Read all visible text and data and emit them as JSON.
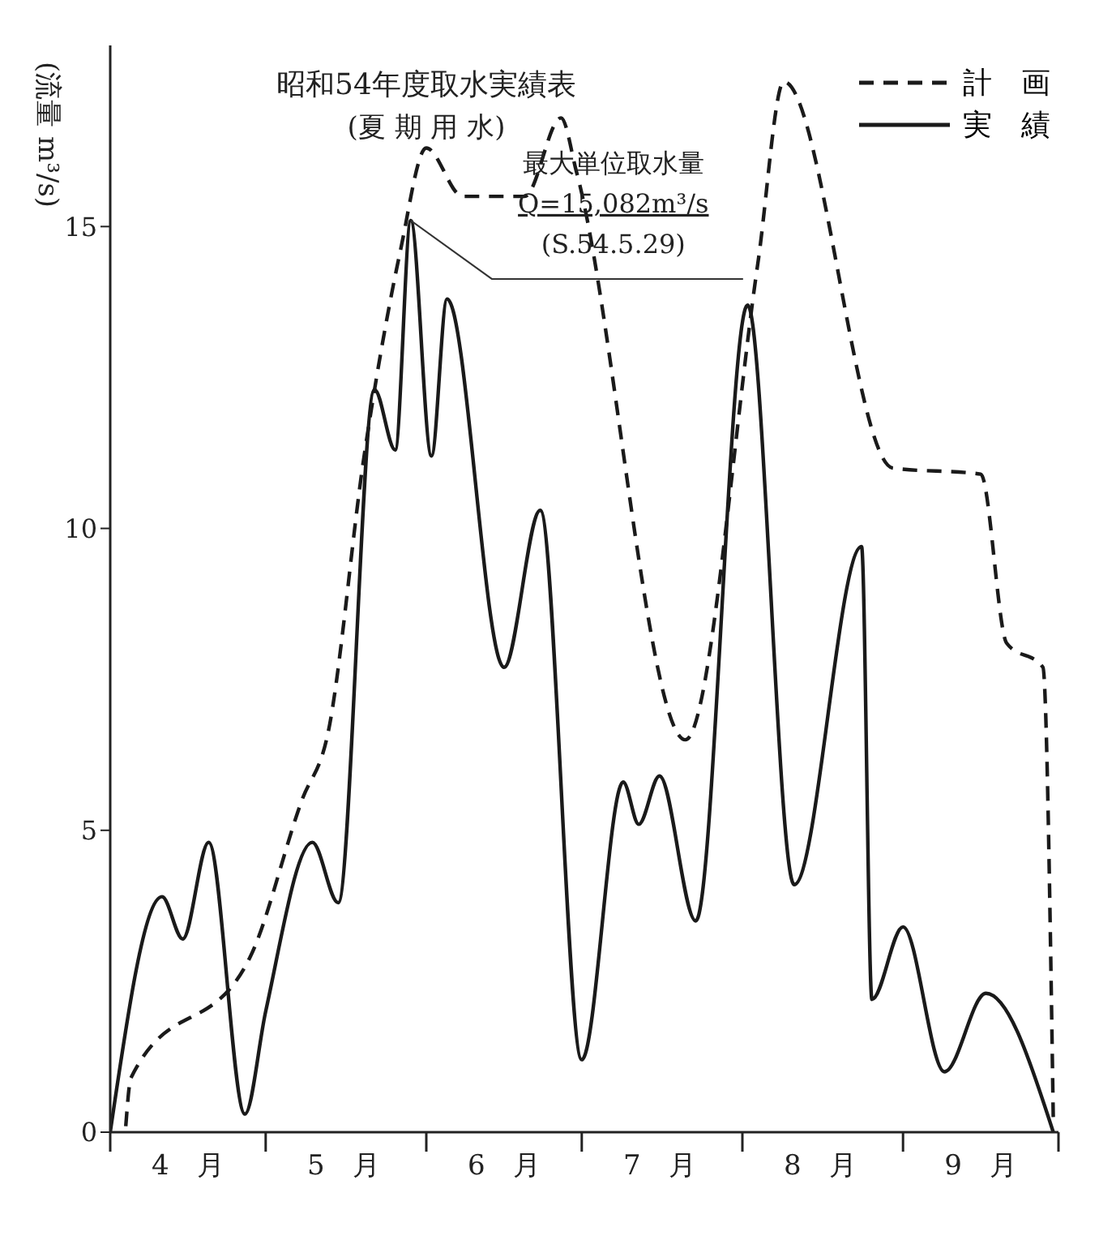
{
  "chart_data": {
    "type": "line",
    "title": "昭和54年度取水実績表",
    "subtitle": "(夏 期 用 水)",
    "ylabel": "(流量 m³/s)",
    "xlim": [
      "--04-01",
      "--10-01"
    ],
    "xticks": [
      {
        "value": "--04-01",
        "label": null
      },
      {
        "value": "--04-16",
        "label": "4　月"
      },
      {
        "value": "--05-01",
        "label": null
      },
      {
        "value": "--05-16",
        "label": "5　月"
      },
      {
        "value": "--06-01",
        "label": null
      },
      {
        "value": "--06-16",
        "label": "6　月"
      },
      {
        "value": "--07-01",
        "label": null
      },
      {
        "value": "--07-16",
        "label": "7　月"
      },
      {
        "value": "--08-01",
        "label": null
      },
      {
        "value": "--08-16",
        "label": "8　月"
      },
      {
        "value": "--09-01",
        "label": null
      },
      {
        "value": "--09-16",
        "label": "9　月"
      },
      {
        "value": "--10-01",
        "label": null
      }
    ],
    "ylim": [
      0,
      18
    ],
    "yticks": [
      0,
      5,
      10,
      15
    ],
    "legend": "top right",
    "marker": "none",
    "series": [
      {
        "name": "計　画",
        "color": "#1a1a1a",
        "line_style": "dashed",
        "x": [
          "--04-04",
          "--04-05",
          "--04-28",
          "--05-08",
          "--05-13",
          "--05-20",
          "--05-27",
          "--06-01",
          "--06-08",
          "--06-20",
          "--06-27",
          "--06-30",
          "--07-21",
          "--08-04",
          "--08-09",
          "--08-30",
          "--09-16",
          "--09-21",
          "--09-28",
          "--09-30"
        ],
        "values": [
          0.1,
          0.9,
          2.9,
          5.5,
          6.6,
          11.2,
          14.6,
          16.3,
          15.5,
          15.5,
          16.8,
          15.9,
          6.5,
          14.4,
          17.4,
          11.0,
          10.9,
          8.1,
          7.7,
          0.2
        ]
      },
      {
        "name": "実　績",
        "color": "#1a1a1a",
        "line_style": "solid",
        "x": [
          "--04-01",
          "--04-11",
          "--04-15",
          "--04-20",
          "--04-27",
          "--05-01",
          "--05-10",
          "--05-15",
          "--05-22",
          "--05-26",
          "--05-29",
          "--06-02",
          "--06-05",
          "--06-16",
          "--06-23",
          "--07-01",
          "--07-09",
          "--07-12",
          "--07-16",
          "--07-23",
          "--08-02",
          "--08-11",
          "--08-24",
          "--08-26",
          "--09-01",
          "--09-09",
          "--09-17",
          "--09-30"
        ],
        "values": [
          0,
          3.9,
          3.2,
          4.8,
          0.3,
          2.0,
          4.8,
          3.8,
          12.3,
          11.3,
          15.1,
          11.2,
          13.8,
          7.7,
          10.3,
          1.2,
          5.8,
          5.1,
          5.9,
          3.5,
          13.7,
          4.1,
          9.7,
          2.2,
          3.4,
          1.0,
          2.3,
          0
        ]
      }
    ],
    "annotations": [
      {
        "text": "最大単位取水量\nQ=15,082m³/s\n(S.54.5.29)",
        "x": "--05-29",
        "y": 15.1
      }
    ]
  }
}
